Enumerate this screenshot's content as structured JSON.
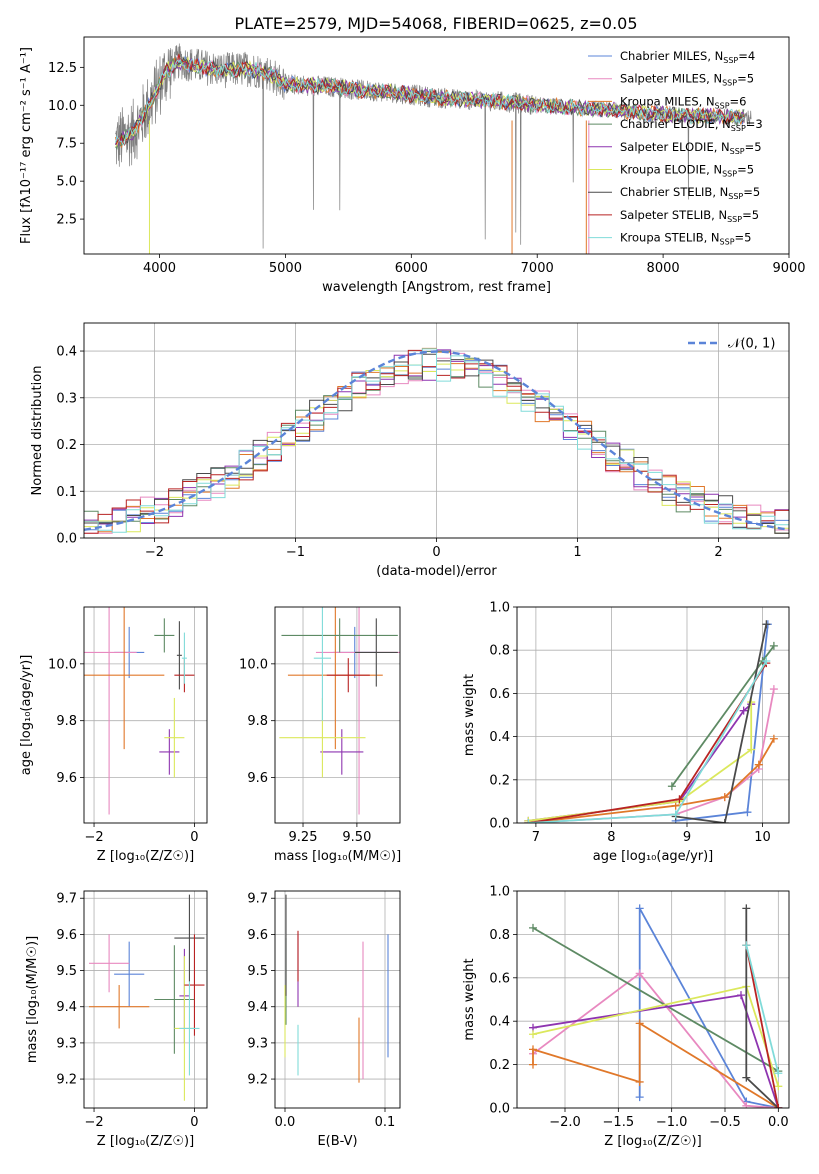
{
  "title": "PLATE=2579, MJD=54068, FIBERID=0625, z=0.05",
  "colors": [
    "#5b84d8",
    "#e889c0",
    "#e0782a",
    "#5e8a64",
    "#8e35b0",
    "#dbe85c",
    "#4a4a4a",
    "#b82323",
    "#80dbd9"
  ],
  "chart_data": [
    {
      "id": "spectrum",
      "type": "line",
      "xlabel": "wavelength [Angstrom, rest frame]",
      "ylabel": "Flux [fλ10⁻¹⁷ erg cm⁻² s⁻¹ A⁻¹]",
      "xlim": [
        3400,
        9000
      ],
      "ylim": [
        0.2,
        14.5
      ],
      "xticks": [
        4000,
        5000,
        6000,
        7000,
        8000,
        9000
      ],
      "yticks": [
        2.5,
        5.0,
        7.5,
        10.0,
        12.5
      ],
      "legend_position": "upper right",
      "series_names": [
        "Chabrier MILES, N_SSP=4",
        "Salpeter MILES, N_SSP=5",
        "Kroupa MILES, N_SSP=6",
        "Chabrier ELODIE, N_SSP=3",
        "Salpeter ELODIE, N_SSP=5",
        "Kroupa ELODIE, N_SSP=5",
        "Chabrier STELIB, N_SSP=5",
        "Salpeter STELIB, N_SSP=5",
        "Kroupa STELIB, N_SSP=5"
      ],
      "continuum_x": [
        3650,
        3800,
        3950,
        4050,
        4150,
        4300,
        4500,
        4700,
        4850,
        5000,
        5200,
        5400,
        5600,
        5800,
        6000,
        6200,
        6400,
        6600,
        6800,
        7000,
        7200,
        7400,
        7600,
        7800,
        8000,
        8200,
        8400,
        8600,
        8700
      ],
      "continuum_y": [
        7.5,
        8.3,
        10.5,
        12.2,
        12.9,
        12.6,
        12.3,
        12.4,
        12.2,
        11.4,
        11.3,
        11.2,
        11.0,
        10.9,
        10.7,
        10.5,
        10.4,
        10.3,
        10.2,
        10.0,
        9.9,
        9.8,
        9.7,
        9.5,
        9.4,
        9.3,
        9.3,
        9.2,
        9.2
      ]
    },
    {
      "id": "residuals",
      "type": "histogram",
      "xlabel": "(data-model)/error",
      "ylabel": "Normed distribution",
      "xlim": [
        -2.5,
        2.5
      ],
      "ylim": [
        0,
        0.46
      ],
      "xticks": [
        -2,
        -1,
        0,
        1,
        2
      ],
      "yticks": [
        0.0,
        0.1,
        0.2,
        0.3,
        0.4
      ],
      "legend": "𝒩(0, 1)",
      "bin_width": 0.1
    },
    {
      "id": "z-age",
      "type": "errorbar",
      "xlabel": "Z [log₁₀(Z/Z☉)]",
      "ylabel": "age  [log₁₀(age/yr)]",
      "xlim": [
        -2.2,
        0.25
      ],
      "ylim": [
        9.44,
        10.2
      ],
      "xticks": [
        -2,
        0
      ],
      "yticks": [
        9.6,
        9.8,
        10.0
      ],
      "points": [
        {
          "x": -1.3,
          "xerr": 0.3,
          "y": 10.04,
          "yerr": 0.09
        },
        {
          "x": -1.7,
          "xerr": 0.55,
          "y": 10.04,
          "yerr": 0.57
        },
        {
          "x": -1.4,
          "xerr": 0.8,
          "y": 9.96,
          "yerr": 0.26
        },
        {
          "x": -0.6,
          "xerr": 0.2,
          "y": 10.1,
          "yerr": 0.06
        },
        {
          "x": -0.5,
          "xerr": 0.2,
          "y": 9.69,
          "yerr": 0.08
        },
        {
          "x": -0.4,
          "xerr": 0.2,
          "y": 9.74,
          "yerr": 0.14
        },
        {
          "x": -0.3,
          "xerr": 0.05,
          "y": 10.03,
          "yerr": 0.12
        },
        {
          "x": -0.2,
          "xerr": 0.2,
          "y": 9.96,
          "yerr": 0.06
        },
        {
          "x": -0.2,
          "xerr": 0.05,
          "y": 10.02,
          "yerr": 0.09
        }
      ]
    },
    {
      "id": "mass-age",
      "type": "errorbar",
      "xlabel": "mass [log₁₀(M/M☉)]",
      "ylabel": "",
      "xlim": [
        9.12,
        9.7
      ],
      "ylim": [
        9.44,
        10.2
      ],
      "xticks": [
        9.25,
        9.5
      ],
      "xticklabels": [
        "9.25",
        "9.50"
      ],
      "yticks": [
        9.6,
        9.8,
        10.0
      ],
      "points": [
        {
          "x": 9.49,
          "xerr": 0.1,
          "y": 10.04,
          "yerr": 0.09
        },
        {
          "x": 9.51,
          "xerr": 0.2,
          "y": 10.04,
          "yerr": 0.57
        },
        {
          "x": 9.4,
          "xerr": 0.22,
          "y": 9.96,
          "yerr": 0.26
        },
        {
          "x": 9.42,
          "xerr": 0.27,
          "y": 10.1,
          "yerr": 0.06
        },
        {
          "x": 9.43,
          "xerr": 0.1,
          "y": 9.69,
          "yerr": 0.08
        },
        {
          "x": 9.34,
          "xerr": 0.2,
          "y": 9.74,
          "yerr": 0.14
        },
        {
          "x": 9.59,
          "xerr": 0.1,
          "y": 10.04,
          "yerr": 0.12
        },
        {
          "x": 9.46,
          "xerr": 0.1,
          "y": 9.96,
          "yerr": 0.06
        },
        {
          "x": 9.34,
          "xerr": 0.04,
          "y": 10.02,
          "yerr": 0.22
        }
      ]
    },
    {
      "id": "age-weight",
      "type": "line",
      "xlabel": "age  [log₁₀(age/yr)]",
      "ylabel": "mass weight",
      "xlim": [
        6.75,
        10.35
      ],
      "ylim": [
        0,
        1
      ],
      "xticks": [
        7,
        8,
        9,
        10
      ],
      "yticks": [
        0.0,
        0.2,
        0.4,
        0.6,
        0.8,
        1.0
      ],
      "series": [
        {
          "x": [
            8.85,
            9.8,
            10.07
          ],
          "y": [
            0.01,
            0.05,
            0.92
          ]
        },
        {
          "x": [
            6.9,
            8.85,
            9.5,
            9.95,
            10.15
          ],
          "y": [
            0.0,
            0.04,
            0.12,
            0.25,
            0.62
          ]
        },
        {
          "x": [
            6.9,
            8.85,
            9.5,
            9.95,
            10.15
          ],
          "y": [
            0.0,
            0.08,
            0.12,
            0.27,
            0.39
          ]
        },
        {
          "x": [
            8.8,
            10.0,
            10.15
          ],
          "y": [
            0.17,
            0.75,
            0.82
          ]
        },
        {
          "x": [
            6.9,
            8.9,
            9.75,
            9.85
          ],
          "y": [
            0.01,
            0.1,
            0.52,
            0.55
          ]
        },
        {
          "x": [
            6.9,
            8.9,
            9.85,
            9.85
          ],
          "y": [
            0.01,
            0.1,
            0.34,
            0.56
          ]
        },
        {
          "x": [
            8.85,
            9.5,
            10.05
          ],
          "y": [
            0.03,
            0.0,
            0.92
          ]
        },
        {
          "x": [
            6.9,
            8.9,
            10.05
          ],
          "y": [
            0.0,
            0.11,
            0.74
          ]
        },
        {
          "x": [
            6.9,
            8.85,
            10.05
          ],
          "y": [
            0.0,
            0.04,
            0.75
          ]
        }
      ]
    },
    {
      "id": "z-mass",
      "type": "errorbar",
      "xlabel": "Z [log₁₀(Z/Z☉)]",
      "ylabel": "mass [log₁₀(M/M☉)]",
      "xlim": [
        -2.2,
        0.25
      ],
      "ylim": [
        9.12,
        9.72
      ],
      "xticks": [
        -2,
        0
      ],
      "yticks": [
        9.2,
        9.3,
        9.4,
        9.5,
        9.6,
        9.7
      ],
      "points": [
        {
          "x": -1.3,
          "xerr": 0.3,
          "y": 9.49,
          "yerr": 0.09
        },
        {
          "x": -1.7,
          "xerr": 0.4,
          "y": 9.52,
          "yerr": 0.08
        },
        {
          "x": -1.5,
          "xerr": 0.6,
          "y": 9.4,
          "yerr": 0.06
        },
        {
          "x": -0.4,
          "xerr": 0.4,
          "y": 9.42,
          "yerr": 0.15
        },
        {
          "x": -0.2,
          "xerr": 0.1,
          "y": 9.43,
          "yerr": 0.13
        },
        {
          "x": -0.2,
          "xerr": 0.2,
          "y": 9.34,
          "yerr": 0.2
        },
        {
          "x": -0.1,
          "xerr": 0.3,
          "y": 9.59,
          "yerr": 0.12
        },
        {
          "x": 0.0,
          "xerr": 0.2,
          "y": 9.46,
          "yerr": 0.14
        },
        {
          "x": -0.1,
          "xerr": 0.2,
          "y": 9.34,
          "yerr": 0.13
        }
      ]
    },
    {
      "id": "ebv-mass",
      "type": "errorbar",
      "xlabel": "E(B-V)",
      "ylabel": "",
      "xlim": [
        -0.01,
        0.115
      ],
      "ylim": [
        9.12,
        9.72
      ],
      "xticks": [
        0.0,
        0.1
      ],
      "yticks": [
        9.2,
        9.3,
        9.4,
        9.5,
        9.6,
        9.7
      ],
      "points": [
        {
          "x": 0.103,
          "xerr": 0,
          "y": 9.43,
          "yerr": 0.17
        },
        {
          "x": 0.078,
          "xerr": 0,
          "y": 9.39,
          "yerr": 0.19
        },
        {
          "x": 0.074,
          "xerr": 0,
          "y": 9.28,
          "yerr": 0.09
        },
        {
          "x": 0.001,
          "xerr": 0,
          "y": 9.47,
          "yerr": 0.12
        },
        {
          "x": 0.013,
          "xerr": 0,
          "y": 9.5,
          "yerr": 0.1
        },
        {
          "x": 0.0,
          "xerr": 0,
          "y": 9.36,
          "yerr": 0.1
        },
        {
          "x": 0.001,
          "xerr": 0,
          "y": 9.57,
          "yerr": 0.14
        },
        {
          "x": 0.013,
          "xerr": 0,
          "y": 9.54,
          "yerr": 0.07
        },
        {
          "x": 0.013,
          "xerr": 0,
          "y": 9.28,
          "yerr": 0.07
        }
      ]
    },
    {
      "id": "z-weight",
      "type": "line",
      "xlabel": "Z [log₁₀(Z/Z☉)]",
      "ylabel": "mass weight",
      "xlim": [
        -2.45,
        0.1
      ],
      "ylim": [
        0,
        1
      ],
      "xticks": [
        -2.0,
        -1.5,
        -1.0,
        -0.5,
        0.0
      ],
      "xticklabels": [
        "−2.0",
        "−1.5",
        "−1.0",
        "−0.5",
        "0.0"
      ],
      "yticks": [
        0.0,
        0.2,
        0.4,
        0.6,
        0.8,
        1.0
      ],
      "series": [
        {
          "x": [
            -1.3,
            -1.3,
            -0.3,
            0.0
          ],
          "y": [
            0.05,
            0.92,
            0.03,
            0.0
          ]
        },
        {
          "x": [
            -2.3,
            -1.3,
            -0.3,
            0.0
          ],
          "y": [
            0.25,
            0.62,
            0.01,
            0.0
          ]
        },
        {
          "x": [
            -2.3,
            -2.3,
            -1.3,
            -1.3,
            0.0
          ],
          "y": [
            0.2,
            0.27,
            0.12,
            0.39,
            0.0
          ]
        },
        {
          "x": [
            -2.3,
            0.0
          ],
          "y": [
            0.83,
            0.17
          ]
        },
        {
          "x": [
            -2.3,
            -0.35,
            0.0
          ],
          "y": [
            0.37,
            0.52,
            0.0
          ]
        },
        {
          "x": [
            -2.3,
            -0.3,
            0.0
          ],
          "y": [
            0.34,
            0.56,
            0.1
          ]
        },
        {
          "x": [
            -0.3,
            -0.3,
            0.0
          ],
          "y": [
            0.92,
            0.14,
            0.0
          ]
        },
        {
          "x": [
            -0.3,
            0.0
          ],
          "y": [
            0.75,
            0.0
          ]
        },
        {
          "x": [
            -0.3,
            0.0
          ],
          "y": [
            0.75,
            0.16
          ]
        }
      ]
    }
  ]
}
